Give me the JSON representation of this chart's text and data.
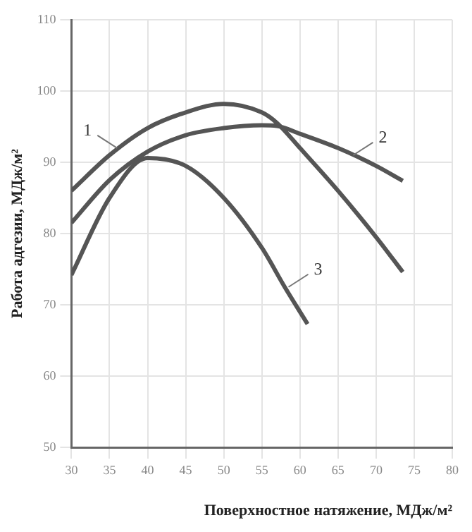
{
  "chart_data": {
    "type": "line",
    "xlabel": "Поверхностное натяжение, МДж/м²",
    "ylabel": "Работа адгезии, МДж/м²",
    "xlim": [
      30,
      80
    ],
    "xticks": [
      30,
      35,
      40,
      45,
      50,
      55,
      60,
      65,
      70,
      75,
      80
    ],
    "ylim": [
      50,
      110
    ],
    "yticks": [
      50,
      60,
      70,
      80,
      90,
      100,
      110
    ],
    "grid": true,
    "marker": "none",
    "line_style": "solid",
    "series": [
      {
        "color": "#555555",
        "x": [
          30,
          35,
          40,
          45,
          50,
          55,
          57,
          60,
          65,
          70,
          73.5
        ],
        "values": [
          86,
          91,
          94.8,
          97,
          98.2,
          97,
          95.5,
          92,
          86,
          79.5,
          74.6
        ]
      },
      {
        "color": "#555555",
        "x": [
          30,
          35,
          40,
          45,
          50,
          55,
          57,
          60,
          65,
          70,
          73.5
        ],
        "values": [
          81.5,
          87.5,
          91.5,
          93.8,
          94.8,
          95.2,
          95.1,
          94,
          92,
          89.5,
          87.4
        ]
      },
      {
        "color": "#555555",
        "x": [
          30,
          35,
          40,
          45,
          50,
          55,
          58,
          61
        ],
        "values": [
          74.2,
          85,
          90.6,
          89.5,
          85,
          78,
          72.5,
          67.3
        ]
      }
    ],
    "annotations": [
      {
        "text": "1",
        "x": 36,
        "y": 92
      },
      {
        "text": "2",
        "x": 67,
        "y": 91
      },
      {
        "text": "3",
        "x": 58.5,
        "y": 72.5
      }
    ]
  }
}
